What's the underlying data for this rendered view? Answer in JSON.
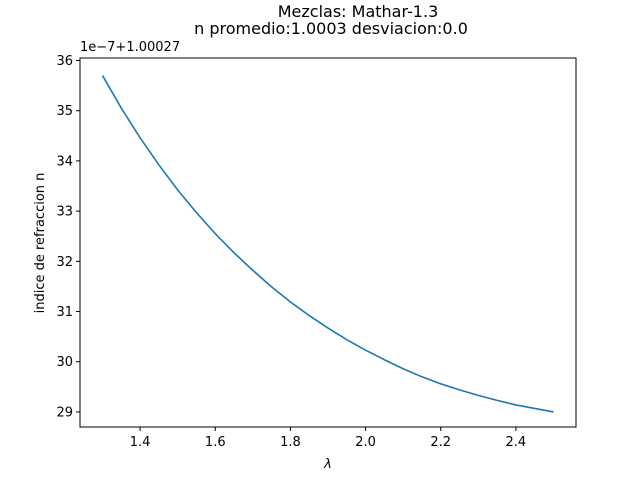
{
  "chart_data": {
    "type": "line",
    "title": "Mezclas: Mathar-1.3",
    "subtitle": "n promedio:1.0003 desviacion:0.0",
    "xlabel": "λ",
    "ylabel": "indice de refraccion n",
    "offset_text": "1e−7+1.00027",
    "xlim": [
      1.24,
      2.56
    ],
    "ylim": [
      28.7,
      36.05
    ],
    "xticks": [
      1.4,
      1.6,
      1.8,
      2.0,
      2.2,
      2.4
    ],
    "xtick_labels": [
      "1.4",
      "1.6",
      "1.8",
      "2.0",
      "2.2",
      "2.4"
    ],
    "yticks": [
      29,
      30,
      31,
      32,
      33,
      34,
      35,
      36
    ],
    "ytick_labels": [
      "29",
      "30",
      "31",
      "32",
      "33",
      "34",
      "35",
      "36"
    ],
    "grid": false,
    "series": [
      {
        "color": "#1f77b4",
        "x": [
          1.3,
          1.35,
          1.4,
          1.45,
          1.5,
          1.55,
          1.6,
          1.65,
          1.7,
          1.75,
          1.8,
          1.85,
          1.9,
          1.95,
          2.0,
          2.05,
          2.1,
          2.15,
          2.2,
          2.25,
          2.3,
          2.35,
          2.4,
          2.45,
          2.5
        ],
        "values": [
          35.7,
          35.05,
          34.46,
          33.92,
          33.42,
          32.97,
          32.55,
          32.17,
          31.82,
          31.49,
          31.19,
          30.92,
          30.67,
          30.44,
          30.23,
          30.04,
          29.86,
          29.7,
          29.56,
          29.44,
          29.33,
          29.23,
          29.14,
          29.07,
          29.0
        ]
      }
    ]
  }
}
